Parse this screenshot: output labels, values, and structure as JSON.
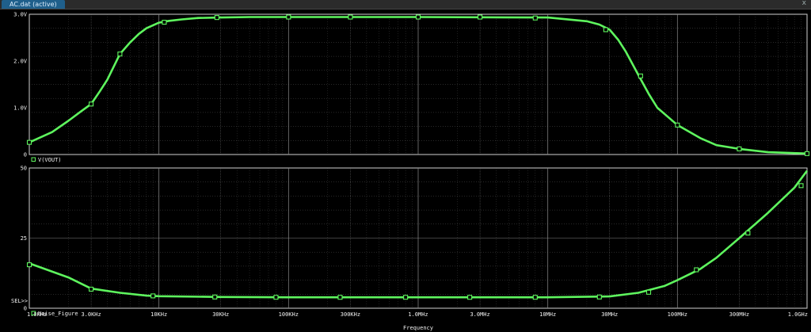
{
  "window": {
    "tab_label": "AC.dat (active)",
    "close_glyph": "x"
  },
  "colors": {
    "trace": "#5ef55e",
    "grid": "#8a8a8a",
    "frame": "#cfcfcf",
    "text": "#f0f0f0",
    "background": "#000000"
  },
  "chart_data": [
    {
      "type": "line",
      "x_scale": "log",
      "xlim": [
        1000,
        1000000000
      ],
      "ylim": [
        0,
        3.0
      ],
      "yticks": [
        0,
        1.0,
        2.0,
        3.0
      ],
      "ytick_labels": [
        "0",
        "1.0V",
        "2.0V",
        "3.0V"
      ],
      "grid": true,
      "series": [
        {
          "name": "V(VOUT)",
          "x": [
            1000,
            1500,
            2000,
            2500,
            3000,
            3500,
            4000,
            5000,
            6000,
            7000,
            8000,
            10000,
            12000,
            15000,
            20000,
            30000,
            50000,
            100000,
            1000000,
            10000000,
            20000000,
            25000000,
            30000000,
            35000000,
            40000000,
            50000000,
            60000000,
            70000000,
            100000000,
            150000000,
            200000000,
            300000000,
            500000000,
            1000000000
          ],
          "y": [
            0.26,
            0.48,
            0.72,
            0.92,
            1.08,
            1.35,
            1.6,
            2.15,
            2.4,
            2.58,
            2.7,
            2.82,
            2.86,
            2.89,
            2.92,
            2.93,
            2.94,
            2.94,
            2.94,
            2.93,
            2.85,
            2.78,
            2.67,
            2.45,
            2.2,
            1.7,
            1.3,
            1.0,
            0.63,
            0.35,
            0.2,
            0.12,
            0.05,
            0.02
          ]
        }
      ],
      "markers_x": [
        1000,
        3000,
        5000,
        11000,
        28000,
        100000,
        300000,
        1000000,
        3000000,
        8000000,
        28000000,
        52000000,
        100000000,
        300000000,
        1000000000
      ],
      "markers_y": [
        0.26,
        1.08,
        2.15,
        2.83,
        2.93,
        2.94,
        2.94,
        2.94,
        2.94,
        2.92,
        2.67,
        1.68,
        0.63,
        0.12,
        0.02
      ]
    },
    {
      "type": "line",
      "x_scale": "log",
      "xlim": [
        1000,
        1000000000
      ],
      "ylim": [
        0,
        50
      ],
      "yticks": [
        0,
        25,
        50
      ],
      "ytick_labels": [
        "0",
        "25",
        "50"
      ],
      "grid": true,
      "xtick_labels": [
        "1.0KHz",
        "3.0KHz",
        "10KHz",
        "30KHz",
        "100KHz",
        "300KHz",
        "1.0MHz",
        "3.0MHz",
        "10MHz",
        "30MHz",
        "100MHz",
        "300MHz",
        "1.0GHz"
      ],
      "xlabel": "Frequency",
      "series": [
        {
          "name": "Noise_Figure",
          "x": [
            1000,
            2000,
            3000,
            5000,
            8000,
            10000,
            30000,
            100000,
            1000000,
            10000000,
            30000000,
            50000000,
            80000000,
            100000000,
            150000000,
            200000000,
            300000000,
            500000000,
            800000000,
            1000000000
          ],
          "y": [
            16,
            11,
            7,
            5.5,
            4.5,
            4.3,
            4.0,
            3.9,
            3.9,
            3.9,
            4.2,
            5.5,
            8,
            10,
            14,
            18,
            25,
            34,
            43,
            49
          ]
        }
      ],
      "markers_x": [
        1000,
        3000,
        9000,
        27000,
        80000,
        250000,
        800000,
        2500000,
        8000000,
        25000000,
        60000000,
        140000000,
        350000000,
        900000000
      ],
      "markers_y": [
        15.5,
        6.8,
        4.4,
        4.0,
        3.9,
        3.9,
        3.9,
        3.9,
        3.9,
        4.0,
        5.7,
        13.7,
        26.8,
        43.7
      ],
      "sel_label": "SEL>>"
    }
  ]
}
